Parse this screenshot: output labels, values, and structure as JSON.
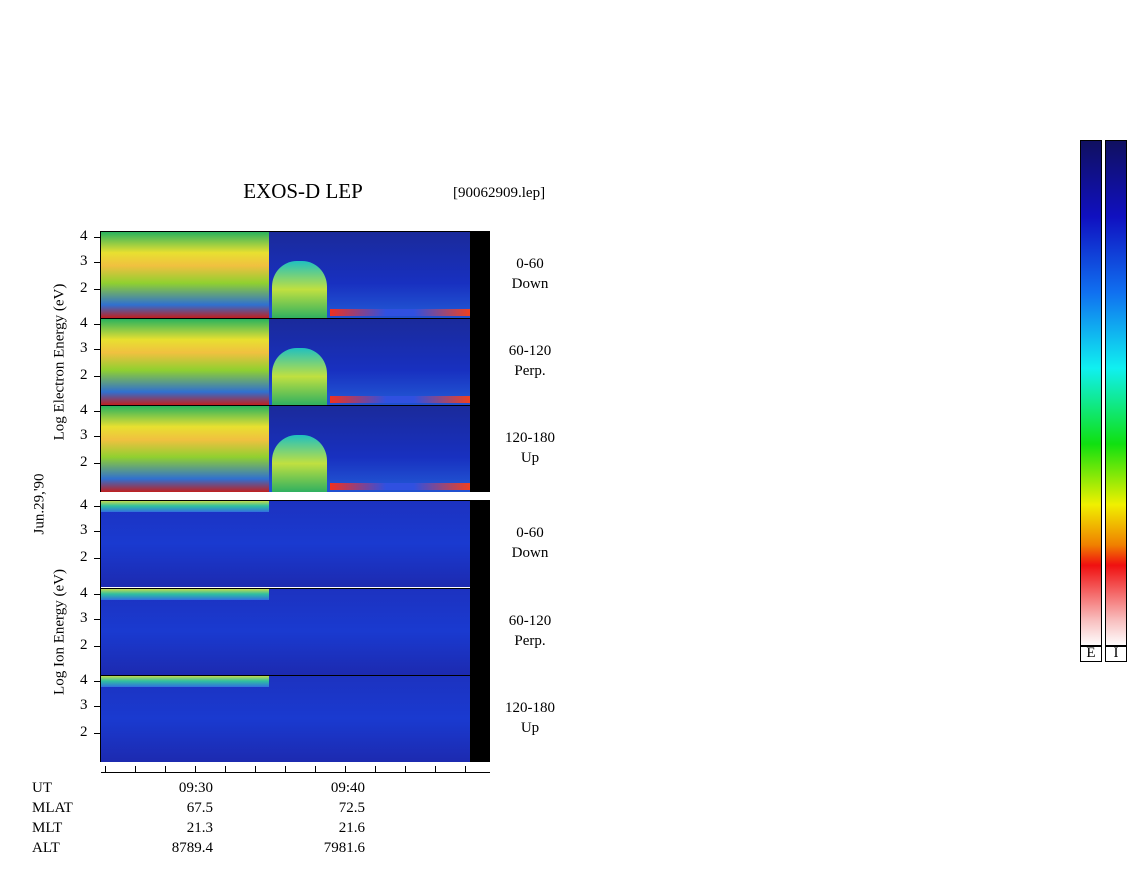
{
  "header": {
    "title": "EXOS-D LEP",
    "file": "[90062909.lep]"
  },
  "date": "Jun.29,'90",
  "yticks": [
    "4",
    "3",
    "2"
  ],
  "groups": [
    {
      "axis_label": "Log Electron Energy (eV)",
      "panels": [
        {
          "label": "0-60",
          "sub": "Down"
        },
        {
          "label": "60-120",
          "sub": "Perp."
        },
        {
          "label": "120-180",
          "sub": "Up"
        }
      ]
    },
    {
      "axis_label": "Log Ion Energy (eV)",
      "panels": [
        {
          "label": "0-60",
          "sub": "Down"
        },
        {
          "label": "60-120",
          "sub": "Perp."
        },
        {
          "label": "120-180",
          "sub": "Up"
        }
      ]
    }
  ],
  "ephemeris": {
    "rows": [
      {
        "name": "UT",
        "values": [
          "09:30",
          "09:40"
        ]
      },
      {
        "name": "MLAT",
        "values": [
          "67.5",
          "72.5"
        ]
      },
      {
        "name": "MLT",
        "values": [
          "21.3",
          "21.6"
        ]
      },
      {
        "name": "ALT",
        "values": [
          "8789.4",
          "7981.6"
        ]
      }
    ]
  },
  "colorbar": {
    "labels": [
      "E",
      "I"
    ]
  }
}
